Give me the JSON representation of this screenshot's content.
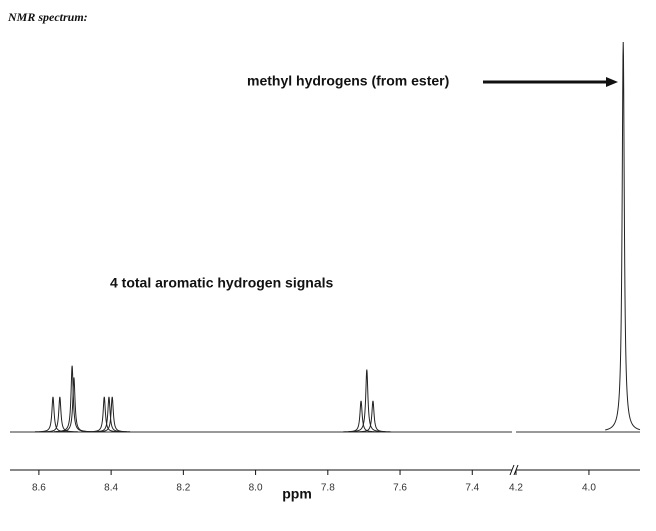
{
  "chart_data": {
    "type": "spectrum",
    "title": "NMR spectrum:",
    "x_label": "ppm",
    "annotations": [
      "methyl hydrogens (from ester)",
      "4 total aromatic hydrogen signals"
    ],
    "ylim": [
      0,
      100
    ],
    "x_segments": [
      {
        "xlim": [
          8.68,
          7.29
        ],
        "xticks": [
          8.6,
          8.4,
          8.2,
          {
            "value": 8,
            "label": "8.0"
          },
          7.8,
          7.6,
          7.4
        ]
      },
      {
        "xlim": [
          4.2,
          3.86
        ],
        "xticks": [
          4.2,
          {
            "value": 4,
            "label": "4.0"
          }
        ]
      }
    ],
    "peaks": {
      "x": [
        8.561,
        8.542,
        8.508,
        8.503,
        8.419,
        8.406,
        8.397,
        7.708,
        7.692,
        7.675,
        3.906
      ],
      "values": [
        9,
        9,
        17,
        14,
        9,
        9,
        9,
        8,
        16,
        8,
        100
      ]
    }
  }
}
